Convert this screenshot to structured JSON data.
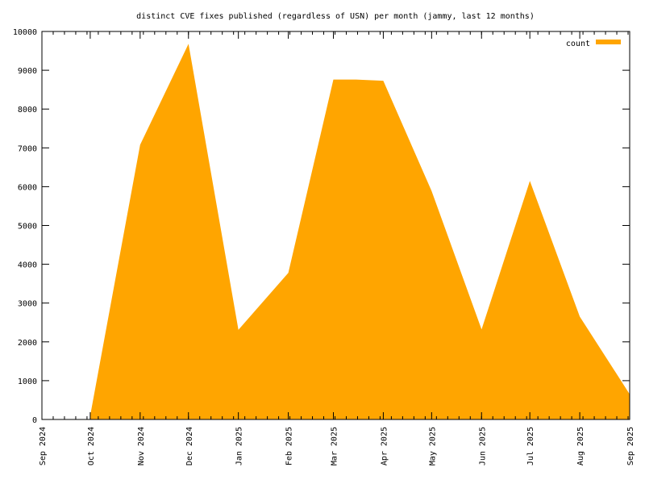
{
  "chart_data": {
    "type": "area",
    "title": "distinct CVE fixes published (regardless of USN) per month (jammy, last 12 months)",
    "xlabel": "",
    "ylabel": "",
    "ylim": [
      0,
      10000
    ],
    "yticks": [
      0,
      1000,
      2000,
      3000,
      4000,
      5000,
      6000,
      7000,
      8000,
      9000,
      10000
    ],
    "xlim": [
      "2024-09-01",
      "2025-09-01"
    ],
    "xticks": [
      {
        "date": "2024-09-01",
        "label": "Sep 2024"
      },
      {
        "date": "2024-10-01",
        "label": "Oct 2024"
      },
      {
        "date": "2024-11-01",
        "label": "Nov 2024"
      },
      {
        "date": "2024-12-01",
        "label": "Dec 2024"
      },
      {
        "date": "2025-01-01",
        "label": "Jan 2025"
      },
      {
        "date": "2025-02-01",
        "label": "Feb 2025"
      },
      {
        "date": "2025-03-01",
        "label": "Mar 2025"
      },
      {
        "date": "2025-04-01",
        "label": "Apr 2025"
      },
      {
        "date": "2025-05-01",
        "label": "May 2025"
      },
      {
        "date": "2025-06-01",
        "label": "Jun 2025"
      },
      {
        "date": "2025-07-01",
        "label": "Jul 2025"
      },
      {
        "date": "2025-08-01",
        "label": "Aug 2025"
      },
      {
        "date": "2025-09-01",
        "label": "Sep 2025"
      }
    ],
    "grid": false,
    "legend": {
      "position": "top-right",
      "entries": [
        "count"
      ]
    },
    "series": [
      {
        "name": "count",
        "color": "#ffa500",
        "points": [
          {
            "x": "2024-10-01",
            "y": 100
          },
          {
            "x": "2024-11-01",
            "y": 7080
          },
          {
            "x": "2024-12-01",
            "y": 9680
          },
          {
            "x": "2025-01-01",
            "y": 2310
          },
          {
            "x": "2025-02-01",
            "y": 3780
          },
          {
            "x": "2025-03-01",
            "y": 8760
          },
          {
            "x": "2025-03-15",
            "y": 8760
          },
          {
            "x": "2025-04-01",
            "y": 8730
          },
          {
            "x": "2025-05-01",
            "y": 5890
          },
          {
            "x": "2025-06-01",
            "y": 2320
          },
          {
            "x": "2025-07-01",
            "y": 6150
          },
          {
            "x": "2025-08-01",
            "y": 2650
          },
          {
            "x": "2025-09-01",
            "y": 650
          }
        ]
      }
    ]
  }
}
